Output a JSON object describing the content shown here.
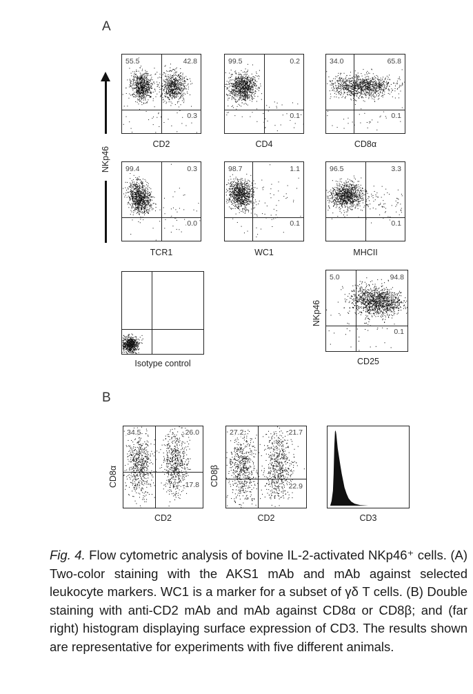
{
  "section_a_label": "A",
  "section_b_label": "B",
  "a_y_label": "NKp46",
  "panels_a": [
    {
      "id": "cd2",
      "x_label": "CD2",
      "q": {
        "ul": "55.5",
        "ur": "42.8",
        "lr": "0.3"
      }
    },
    {
      "id": "cd4",
      "x_label": "CD4",
      "q": {
        "ul": "99.5",
        "ur": "0.2",
        "lr": "0.1"
      }
    },
    {
      "id": "cd8a",
      "x_label": "CD8α",
      "q": {
        "ul": "34.0",
        "ur": "65.8",
        "lr": "0.1"
      }
    },
    {
      "id": "tcr1",
      "x_label": "TCR1",
      "q": {
        "ul": "99.4",
        "ur": "0.3",
        "lr": "0.0"
      }
    },
    {
      "id": "wc1",
      "x_label": "WC1",
      "q": {
        "ul": "98.7",
        "ur": "1.1",
        "lr": "0.1"
      }
    },
    {
      "id": "mhcii",
      "x_label": "MHCII",
      "q": {
        "ul": "96.5",
        "ur": "3.3",
        "lr": "0.1"
      }
    },
    {
      "id": "isotype",
      "x_label": "Isotype control"
    },
    {
      "id": "cd25",
      "x_label": "CD25",
      "y_label": "NKp46",
      "q": {
        "ul": "5.0",
        "ur": "94.8",
        "lr": "0.1"
      }
    }
  ],
  "panels_b": [
    {
      "id": "cd8a-cd2",
      "x_label": "CD2",
      "y_label": "CD8α",
      "q": {
        "ul": "34.5",
        "ur": "26.0",
        "lr": "17.8"
      }
    },
    {
      "id": "cd8b-cd2",
      "x_label": "CD2",
      "y_label": "CD8β",
      "q": {
        "ul": "27.2",
        "ur": "21.7",
        "lr": "22.9"
      }
    },
    {
      "id": "cd3-hist",
      "x_label": "CD3"
    }
  ],
  "caption": {
    "fig_label": "Fig. 4.",
    "text": " Flow cytometric analysis of bovine IL-2-activated NKp46⁺ cells. (A) Two-color staining with the AKS1 mAb and mAb against selected leukocyte markers. WC1 is a marker for a subset of γδ T cells. (B) Double staining with anti-CD2 mAb and mAb against CD8α or CD8β; and (far right) histogram displaying surface expression of CD3. The results shown are representative for experiments with five different animals."
  }
}
